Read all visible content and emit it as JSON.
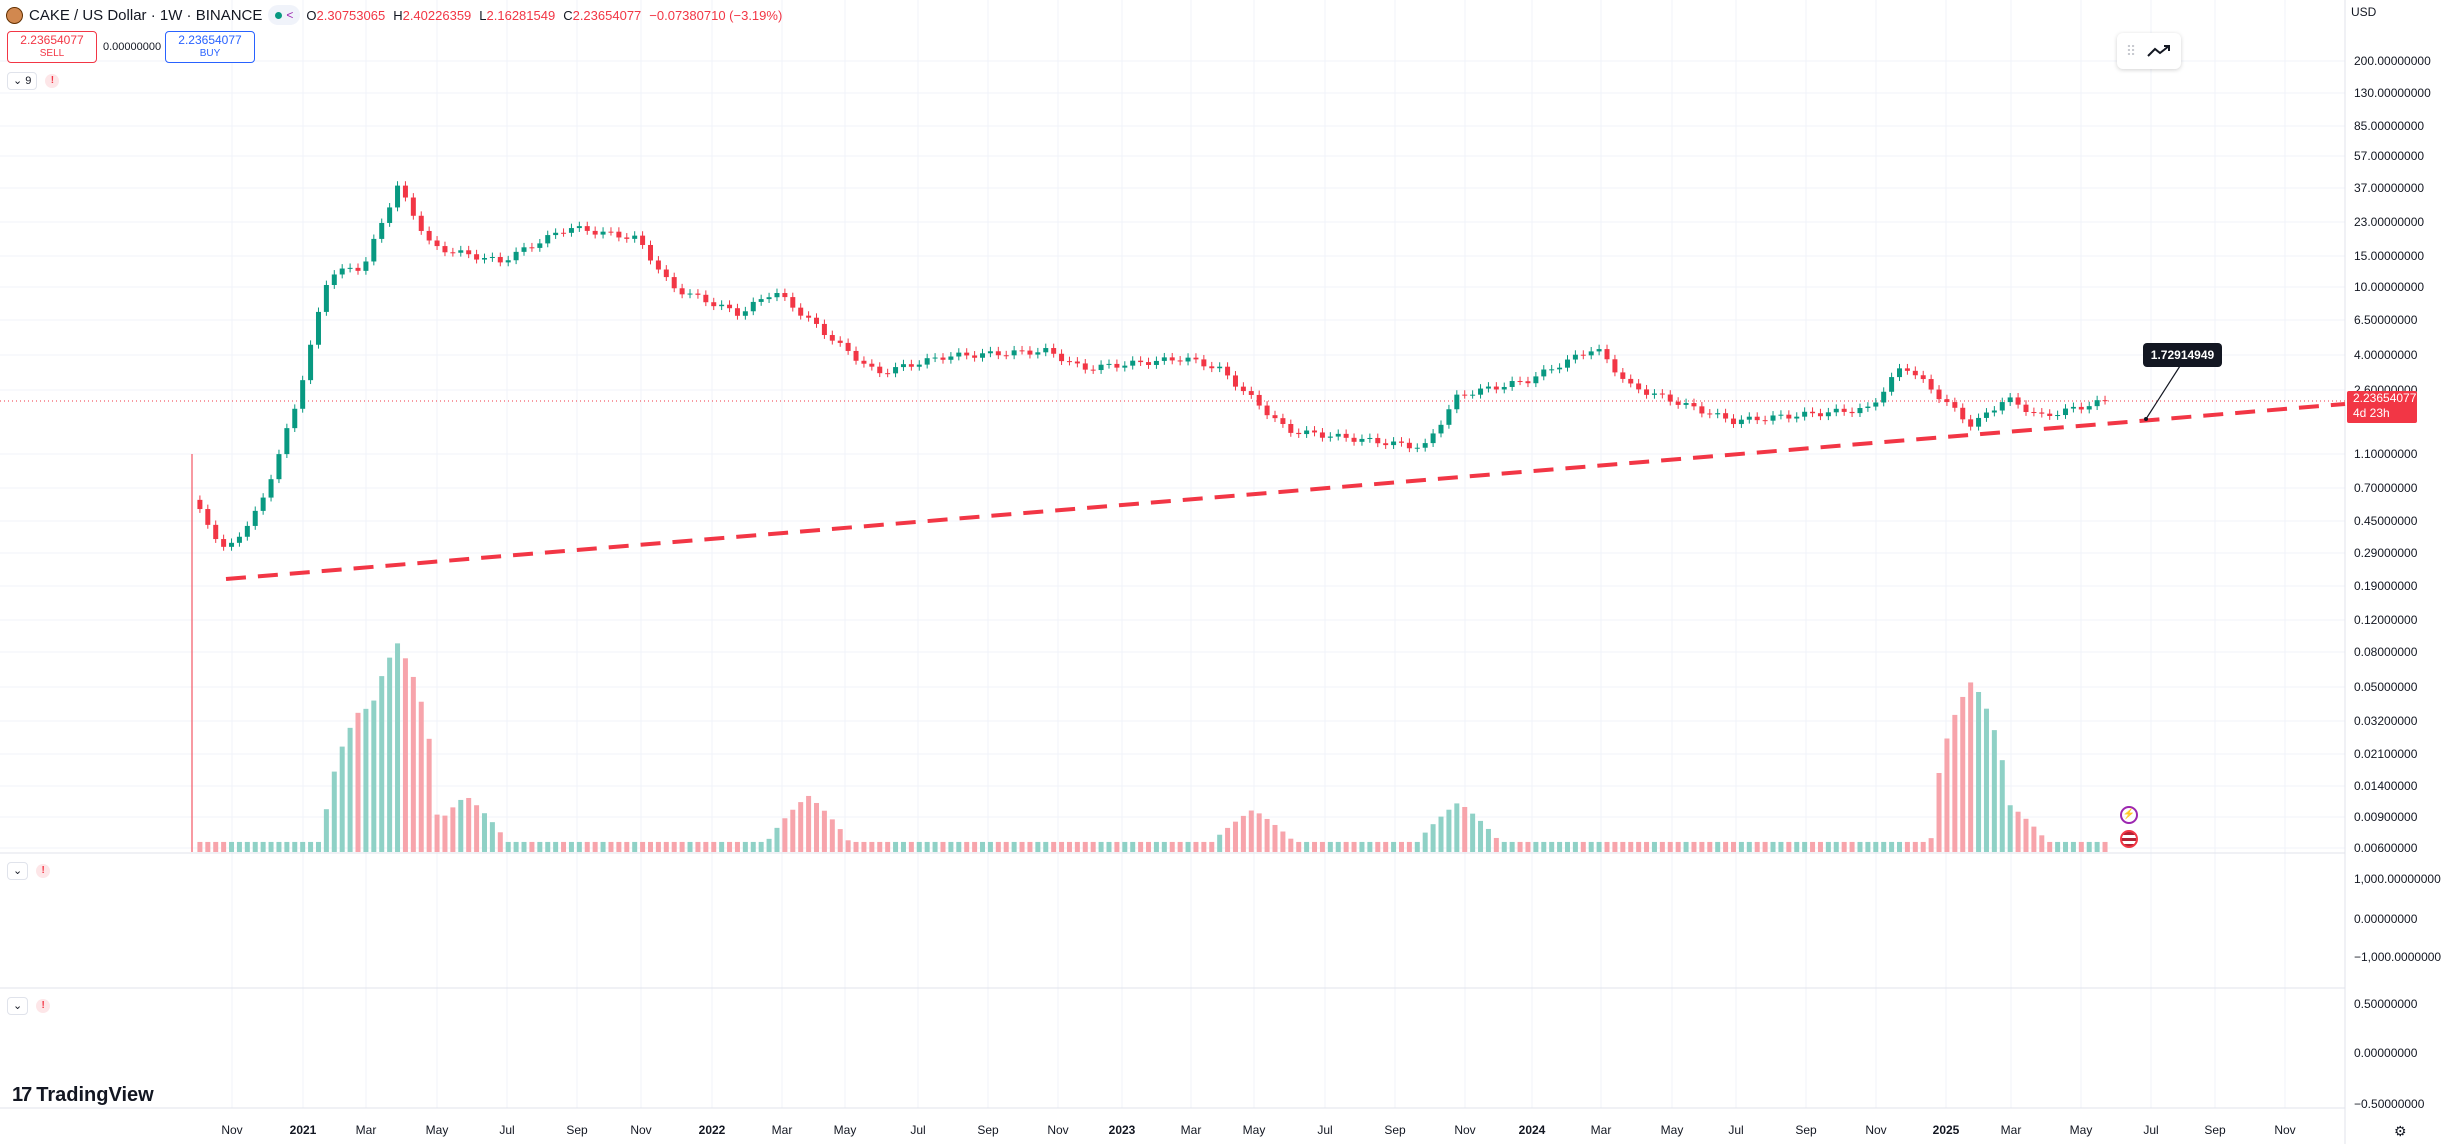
{
  "header": {
    "symbol": "CAKE / US Dollar · 1W · BINANCE",
    "ohlc": [
      {
        "k": "O",
        "v": "2.30753065"
      },
      {
        "k": "H",
        "v": "2.40226359"
      },
      {
        "k": "L",
        "v": "2.16281549"
      },
      {
        "k": "C",
        "v": "2.23654077"
      }
    ],
    "change": "−0.07380710 (−3.19%)"
  },
  "trade": {
    "sell_price": "2.23654077",
    "sell_label": "SELL",
    "spread": "0.00000000",
    "buy_price": "2.23654077",
    "buy_label": "BUY"
  },
  "indicators": {
    "main_count": "9",
    "warning": "!"
  },
  "currency": "USD",
  "price_tag": {
    "price": "2.23654077",
    "countdown": "4d 23h"
  },
  "callout": "1.72914949",
  "logo": "TradingView",
  "colors": {
    "up": "#089981",
    "down": "#f23645",
    "trendline": "#f23645",
    "up_volume": "#8fd1c6",
    "down_volume": "#f7a4ab"
  },
  "icons": [
    "trend-tool-icon",
    "chevron-down-icon",
    "warning-icon",
    "flash-event-icon",
    "us-flag-event-icon",
    "settings-icon"
  ],
  "y_axis_labels": [
    "200.00000000",
    "130.00000000",
    "85.00000000",
    "57.00000000",
    "37.00000000",
    "23.00000000",
    "15.00000000",
    "10.00000000",
    "6.50000000",
    "4.00000000",
    "2.60000000",
    "1.10000000",
    "0.70000000",
    "0.45000000",
    "0.29000000",
    "0.19000000",
    "0.12000000",
    "0.08000000",
    "0.05000000",
    "0.03200000",
    "0.02100000",
    "0.01400000",
    "0.00900000",
    "0.00600000"
  ],
  "pane2_labels": [
    "1,000.00000000",
    "0.00000000",
    "−1,000.00000000"
  ],
  "pane3_labels": [
    "0.50000000",
    "0.00000000",
    "−0.50000000"
  ],
  "x_axis_labels": [
    {
      "t": "Nov",
      "b": false
    },
    {
      "t": "2021",
      "b": true
    },
    {
      "t": "Mar",
      "b": false
    },
    {
      "t": "May",
      "b": false
    },
    {
      "t": "Jul",
      "b": false
    },
    {
      "t": "Sep",
      "b": false
    },
    {
      "t": "Nov",
      "b": false
    },
    {
      "t": "2022",
      "b": true
    },
    {
      "t": "Mar",
      "b": false
    },
    {
      "t": "May",
      "b": false
    },
    {
      "t": "Jul",
      "b": false
    },
    {
      "t": "Sep",
      "b": false
    },
    {
      "t": "Nov",
      "b": false
    },
    {
      "t": "2023",
      "b": true
    },
    {
      "t": "Mar",
      "b": false
    },
    {
      "t": "May",
      "b": false
    },
    {
      "t": "Jul",
      "b": false
    },
    {
      "t": "Sep",
      "b": false
    },
    {
      "t": "Nov",
      "b": false
    },
    {
      "t": "2024",
      "b": true
    },
    {
      "t": "Mar",
      "b": false
    },
    {
      "t": "May",
      "b": false
    },
    {
      "t": "Jul",
      "b": false
    },
    {
      "t": "Sep",
      "b": false
    },
    {
      "t": "Nov",
      "b": false
    },
    {
      "t": "2025",
      "b": true
    },
    {
      "t": "Mar",
      "b": false
    },
    {
      "t": "May",
      "b": false
    },
    {
      "t": "Jul",
      "b": false
    },
    {
      "t": "Sep",
      "b": false
    },
    {
      "t": "Nov",
      "b": false
    }
  ],
  "chart_data": {
    "type": "candlestick",
    "interval": "1W",
    "y_scale": "log",
    "close_path_usd": [
      {
        "date": "2020-10",
        "close": 0.6
      },
      {
        "date": "2020-11",
        "close": 0.3
      },
      {
        "date": "2020-12",
        "close": 0.55
      },
      {
        "date": "2021-01",
        "close": 2.0
      },
      {
        "date": "2021-02",
        "close": 12.0
      },
      {
        "date": "2021-03",
        "close": 13.0
      },
      {
        "date": "2021-04",
        "close": 38.0
      },
      {
        "date": "2021-05",
        "close": 17.0
      },
      {
        "date": "2021-07",
        "close": 14.0
      },
      {
        "date": "2021-09",
        "close": 22.0
      },
      {
        "date": "2021-11",
        "close": 19.0
      },
      {
        "date": "2021-12",
        "close": 10.0
      },
      {
        "date": "2022-02",
        "close": 7.0
      },
      {
        "date": "2022-03",
        "close": 9.5
      },
      {
        "date": "2022-05",
        "close": 4.5
      },
      {
        "date": "2022-06",
        "close": 3.2
      },
      {
        "date": "2022-08",
        "close": 4.0
      },
      {
        "date": "2022-11",
        "close": 4.3
      },
      {
        "date": "2022-12",
        "close": 3.4
      },
      {
        "date": "2023-03",
        "close": 3.9
      },
      {
        "date": "2023-04",
        "close": 3.4
      },
      {
        "date": "2023-06",
        "close": 1.5
      },
      {
        "date": "2023-10",
        "close": 1.2
      },
      {
        "date": "2023-11",
        "close": 2.4
      },
      {
        "date": "2024-01",
        "close": 2.9
      },
      {
        "date": "2024-03",
        "close": 4.5
      },
      {
        "date": "2024-04",
        "close": 2.7
      },
      {
        "date": "2024-07",
        "close": 1.7
      },
      {
        "date": "2024-11",
        "close": 2.0
      },
      {
        "date": "2024-12",
        "close": 3.6
      },
      {
        "date": "2025-02",
        "close": 1.6
      },
      {
        "date": "2025-03",
        "close": 2.3
      },
      {
        "date": "2025-04",
        "close": 1.8
      },
      {
        "date": "2025-06",
        "close": 2.24
      }
    ],
    "volume_path": [
      {
        "date": "2021-03",
        "volume": 0.04
      },
      {
        "date": "2021-04",
        "volume": 0.09
      },
      {
        "date": "2021-06",
        "volume": 0.012
      },
      {
        "date": "2022-04",
        "volume": 0.012
      },
      {
        "date": "2023-05",
        "volume": 0.01
      },
      {
        "date": "2023-11",
        "volume": 0.011
      },
      {
        "date": "2025-02",
        "volume": 0.055
      },
      {
        "date": "2025-03",
        "volume": 0.011
      }
    ]
  }
}
